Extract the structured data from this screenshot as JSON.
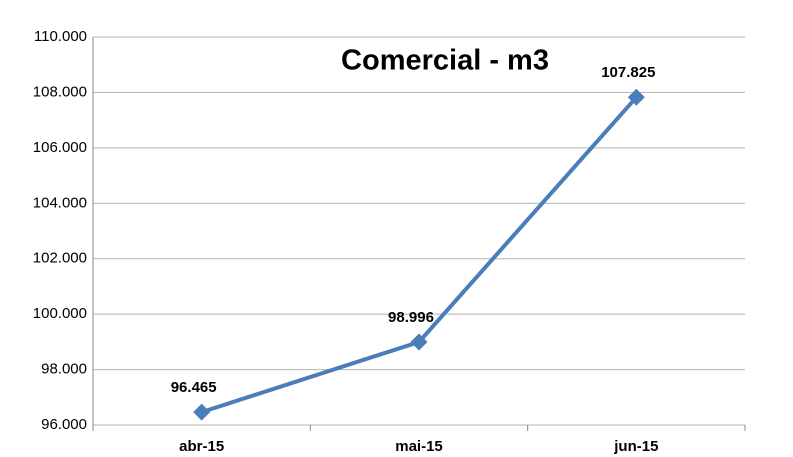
{
  "chart_data": {
    "type": "line",
    "title": "Comercial - m3",
    "categories": [
      "abr-15",
      "mai-15",
      "jun-15"
    ],
    "series": [
      {
        "name": "Comercial - m3",
        "color": "#4a7ebb",
        "values": [
          96465,
          98996,
          107825
        ],
        "value_labels": [
          "96.465",
          "98.996",
          "107.825"
        ]
      }
    ],
    "ylim": [
      96000,
      110000
    ],
    "yticks": [
      {
        "value": 96000,
        "label": "96.000"
      },
      {
        "value": 98000,
        "label": "98.000"
      },
      {
        "value": 100000,
        "label": "100.000"
      },
      {
        "value": 102000,
        "label": "102.000"
      },
      {
        "value": 104000,
        "label": "104.000"
      },
      {
        "value": 106000,
        "label": "106.000"
      },
      {
        "value": 108000,
        "label": "108.000"
      },
      {
        "value": 110000,
        "label": "110.000"
      }
    ],
    "grid": true
  }
}
